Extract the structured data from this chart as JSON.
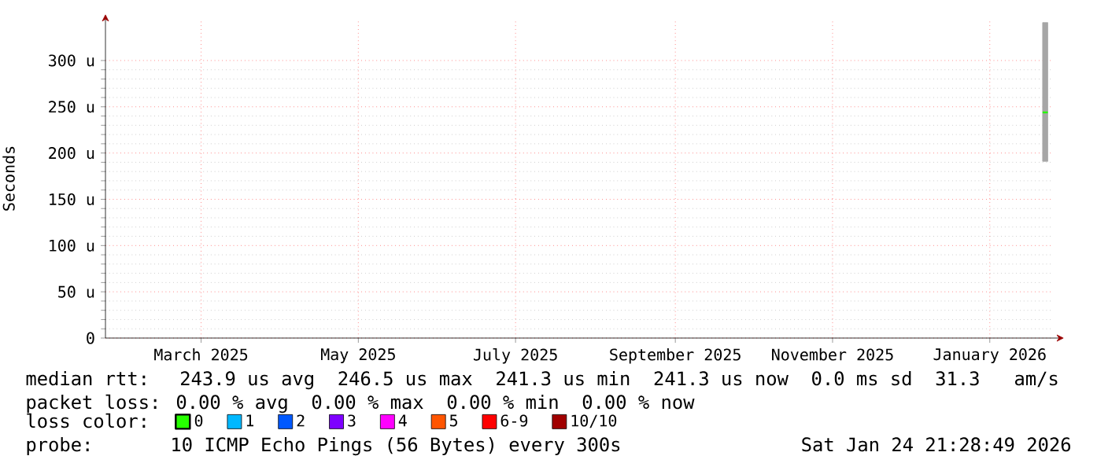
{
  "chart_data": {
    "type": "line",
    "ylabel": "Seconds",
    "legend_title": "loss color:",
    "legend": "bottom",
    "grid": true,
    "xlim": [
      "2025-01-22T21:28",
      "2026-01-24T21:28"
    ],
    "xticks": [
      {
        "value": "2025-03-01",
        "label": "March 2025"
      },
      {
        "value": "2025-05-01",
        "label": "May 2025"
      },
      {
        "value": "2025-07-01",
        "label": "July 2025"
      },
      {
        "value": "2025-09-01",
        "label": "September 2025"
      },
      {
        "value": "2025-11-01",
        "label": "November 2025"
      },
      {
        "value": "2026-01-01",
        "label": "January 2026"
      }
    ],
    "ylim": [
      0,
      345
    ],
    "yticks": [
      0,
      {
        "value": 50,
        "label": "50 u"
      },
      {
        "value": 100,
        "label": "100 u"
      },
      {
        "value": 150,
        "label": "150 u"
      },
      {
        "value": 200,
        "label": "200 u"
      },
      {
        "value": 250,
        "label": "250 u"
      },
      {
        "value": 300,
        "label": "300 u"
      }
    ],
    "series": [
      {
        "name": "0",
        "color": "#26ff00",
        "x": [
          "2026-01-21T12:00",
          "2026-01-23T12:00"
        ],
        "values": [
          243.9,
          243.9
        ],
        "lower": [
          191,
          191
        ],
        "upper": [
          341,
          341
        ]
      },
      {
        "name": "1",
        "color": "#00b8ff",
        "values": [
          null
        ]
      },
      {
        "name": "2",
        "color": "#0059ff",
        "values": [
          null
        ]
      },
      {
        "name": "3",
        "color": "#7e00ff",
        "values": [
          null
        ]
      },
      {
        "name": "4",
        "color": "#ff00ff",
        "values": [
          null
        ]
      },
      {
        "name": "5",
        "color": "#ff5500",
        "values": [
          null
        ]
      },
      {
        "name": "6-9",
        "color": "#ff0000",
        "values": [
          null
        ]
      },
      {
        "name": "10/10",
        "color": "#a10000",
        "values": [
          null
        ]
      }
    ],
    "annotations": [
      "median rtt:  243.9 us avg  246.5 us max  241.3 us min  241.3 us now  0.0 ms sd  31.3   am/s",
      "packet loss: 0.00 % avg  0.00 % max  0.00 % min  0.00 % now",
      "probe:",
      "10 ICMP Echo Pings (56 Bytes) every 300s",
      "Sat Jan 24 21:28:49 2026"
    ]
  }
}
